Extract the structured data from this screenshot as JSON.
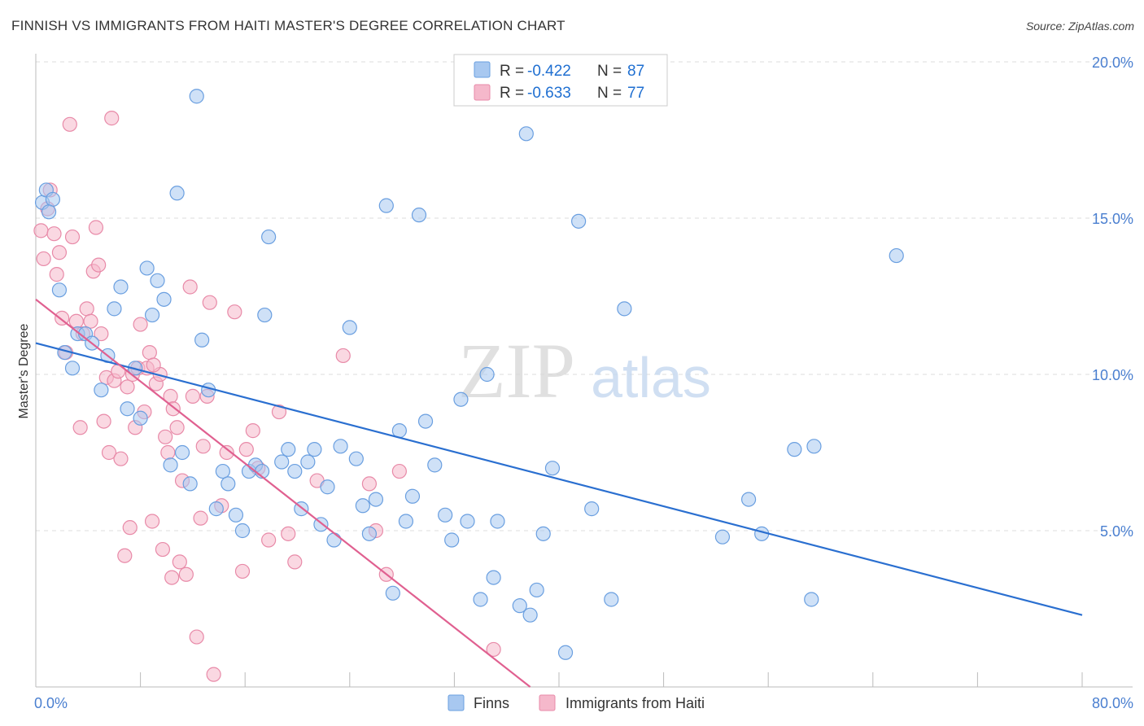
{
  "header": {
    "title": "FINNISH VS IMMIGRANTS FROM HAITI MASTER'S DEGREE CORRELATION CHART",
    "source": "Source: ZipAtlas.com"
  },
  "watermark": {
    "zip": "ZIP",
    "atlas": "atlas"
  },
  "legend": {
    "rows": [
      {
        "r_label": "R = ",
        "r_value": "-0.422",
        "n_label": "N = ",
        "n_value": "87",
        "color": "#a8c8f0"
      },
      {
        "r_label": "R = ",
        "r_value": "-0.633",
        "n_label": "N = ",
        "n_value": "77",
        "color": "#f5b8cb"
      }
    ]
  },
  "chart_data": {
    "type": "scatter",
    "title": "FINNISH VS IMMIGRANTS FROM HAITI MASTER'S DEGREE CORRELATION CHART",
    "xlabel": "",
    "ylabel": "Master's Degree",
    "xlim": [
      0,
      80
    ],
    "ylim": [
      0,
      20
    ],
    "x_tick_labels": [
      "0.0%",
      "80.0%"
    ],
    "y_ticks": [
      5,
      10,
      15,
      20
    ],
    "y_tick_labels": [
      "5.0%",
      "10.0%",
      "15.0%",
      "20.0%"
    ],
    "grid": "horizontal dashed",
    "legend_position": "top-center",
    "series": [
      {
        "name": "Finns",
        "color": "#a8c8f0",
        "stroke": "#6a9fe0",
        "trend_color": "#2a6fd0",
        "R": -0.422,
        "N": 87,
        "trend": {
          "x": [
            0,
            80
          ],
          "y": [
            11.0,
            2.3
          ]
        },
        "points": [
          [
            0.5,
            15.5
          ],
          [
            0.8,
            15.9
          ],
          [
            1.3,
            15.6
          ],
          [
            1.8,
            12.7
          ],
          [
            2.2,
            10.7
          ],
          [
            2.8,
            10.2
          ],
          [
            3.2,
            11.3
          ],
          [
            3.8,
            11.3
          ],
          [
            4.3,
            11.0
          ],
          [
            5.0,
            9.5
          ],
          [
            5.5,
            10.6
          ],
          [
            6.0,
            12.1
          ],
          [
            6.5,
            12.8
          ],
          [
            7.0,
            8.9
          ],
          [
            7.6,
            10.2
          ],
          [
            8.0,
            8.6
          ],
          [
            8.5,
            13.4
          ],
          [
            8.9,
            11.9
          ],
          [
            9.3,
            13.0
          ],
          [
            9.8,
            12.4
          ],
          [
            10.3,
            7.1
          ],
          [
            10.8,
            15.8
          ],
          [
            11.2,
            7.5
          ],
          [
            11.8,
            6.5
          ],
          [
            12.3,
            18.9
          ],
          [
            12.7,
            11.1
          ],
          [
            13.2,
            9.5
          ],
          [
            13.8,
            5.7
          ],
          [
            14.3,
            6.9
          ],
          [
            14.7,
            6.5
          ],
          [
            15.3,
            5.5
          ],
          [
            15.8,
            5.0
          ],
          [
            16.3,
            6.9
          ],
          [
            16.8,
            7.1
          ],
          [
            17.3,
            6.9
          ],
          [
            17.8,
            14.4
          ],
          [
            17.5,
            11.9
          ],
          [
            18.8,
            7.2
          ],
          [
            19.3,
            7.6
          ],
          [
            19.8,
            6.9
          ],
          [
            20.3,
            5.7
          ],
          [
            20.8,
            7.2
          ],
          [
            21.3,
            7.6
          ],
          [
            21.8,
            5.2
          ],
          [
            22.3,
            6.4
          ],
          [
            22.8,
            4.7
          ],
          [
            23.3,
            7.7
          ],
          [
            24.0,
            11.5
          ],
          [
            24.5,
            7.3
          ],
          [
            25.0,
            5.8
          ],
          [
            25.5,
            4.9
          ],
          [
            26.0,
            6.0
          ],
          [
            26.8,
            15.4
          ],
          [
            27.3,
            3.0
          ],
          [
            27.8,
            8.2
          ],
          [
            28.3,
            5.3
          ],
          [
            28.8,
            6.1
          ],
          [
            29.3,
            15.1
          ],
          [
            29.8,
            8.5
          ],
          [
            30.5,
            7.1
          ],
          [
            31.3,
            5.5
          ],
          [
            31.8,
            4.7
          ],
          [
            32.5,
            9.2
          ],
          [
            33.0,
            5.3
          ],
          [
            34.5,
            10.0
          ],
          [
            34.0,
            2.8
          ],
          [
            35.0,
            3.5
          ],
          [
            35.3,
            5.3
          ],
          [
            37.0,
            2.6
          ],
          [
            37.5,
            17.7
          ],
          [
            37.8,
            2.3
          ],
          [
            38.3,
            3.1
          ],
          [
            38.8,
            4.9
          ],
          [
            39.5,
            7.0
          ],
          [
            40.5,
            1.1
          ],
          [
            41.5,
            14.9
          ],
          [
            42.5,
            5.7
          ],
          [
            44.0,
            2.8
          ],
          [
            45.0,
            12.1
          ],
          [
            52.5,
            4.8
          ],
          [
            54.5,
            6.0
          ],
          [
            55.5,
            4.9
          ],
          [
            58.0,
            7.6
          ],
          [
            59.3,
            2.8
          ],
          [
            59.5,
            7.7
          ],
          [
            65.8,
            13.8
          ],
          [
            1.0,
            15.2
          ]
        ]
      },
      {
        "name": "Immigrants from Haiti",
        "color": "#f5b8cb",
        "stroke": "#e88aa8",
        "trend_color": "#e06090",
        "R": -0.633,
        "N": 77,
        "trend": {
          "x": [
            0,
            37.8
          ],
          "y": [
            12.4,
            0
          ]
        },
        "points": [
          [
            0.4,
            14.6
          ],
          [
            0.6,
            13.7
          ],
          [
            0.9,
            15.3
          ],
          [
            1.1,
            15.9
          ],
          [
            1.4,
            14.5
          ],
          [
            1.6,
            13.2
          ],
          [
            1.8,
            13.9
          ],
          [
            2.0,
            11.8
          ],
          [
            2.3,
            10.7
          ],
          [
            2.6,
            18.0
          ],
          [
            2.8,
            14.4
          ],
          [
            3.1,
            11.7
          ],
          [
            3.4,
            8.3
          ],
          [
            3.6,
            11.3
          ],
          [
            3.9,
            12.1
          ],
          [
            4.2,
            11.7
          ],
          [
            4.4,
            13.3
          ],
          [
            4.6,
            14.7
          ],
          [
            4.8,
            13.5
          ],
          [
            5.0,
            11.3
          ],
          [
            5.2,
            8.5
          ],
          [
            5.4,
            9.9
          ],
          [
            5.6,
            7.5
          ],
          [
            5.8,
            18.2
          ],
          [
            6.0,
            9.8
          ],
          [
            6.3,
            10.1
          ],
          [
            6.5,
            7.3
          ],
          [
            6.8,
            4.2
          ],
          [
            7.0,
            9.6
          ],
          [
            7.2,
            5.1
          ],
          [
            7.4,
            10.0
          ],
          [
            7.6,
            8.3
          ],
          [
            7.8,
            10.2
          ],
          [
            8.0,
            11.6
          ],
          [
            8.3,
            8.8
          ],
          [
            8.5,
            10.2
          ],
          [
            8.7,
            10.7
          ],
          [
            8.9,
            5.3
          ],
          [
            9.2,
            9.7
          ],
          [
            9.5,
            10.0
          ],
          [
            9.7,
            4.4
          ],
          [
            9.9,
            8.0
          ],
          [
            10.1,
            7.5
          ],
          [
            10.3,
            9.3
          ],
          [
            10.5,
            8.9
          ],
          [
            10.8,
            8.3
          ],
          [
            11.0,
            4.0
          ],
          [
            11.2,
            6.6
          ],
          [
            11.5,
            3.6
          ],
          [
            11.8,
            12.8
          ],
          [
            12.0,
            9.3
          ],
          [
            12.3,
            1.6
          ],
          [
            12.6,
            5.4
          ],
          [
            12.8,
            7.7
          ],
          [
            13.1,
            9.3
          ],
          [
            13.3,
            12.3
          ],
          [
            13.6,
            0.4
          ],
          [
            14.2,
            5.8
          ],
          [
            14.6,
            7.5
          ],
          [
            15.2,
            12.0
          ],
          [
            15.8,
            3.7
          ],
          [
            16.1,
            7.6
          ],
          [
            16.6,
            8.2
          ],
          [
            17.0,
            7.0
          ],
          [
            17.8,
            4.7
          ],
          [
            18.6,
            8.8
          ],
          [
            19.3,
            4.9
          ],
          [
            19.8,
            4.0
          ],
          [
            21.5,
            6.6
          ],
          [
            23.5,
            10.6
          ],
          [
            25.5,
            6.5
          ],
          [
            26.0,
            5.0
          ],
          [
            26.8,
            3.6
          ],
          [
            27.8,
            6.9
          ],
          [
            35.0,
            1.2
          ],
          [
            10.4,
            3.5
          ],
          [
            9.0,
            10.3
          ]
        ]
      }
    ]
  }
}
